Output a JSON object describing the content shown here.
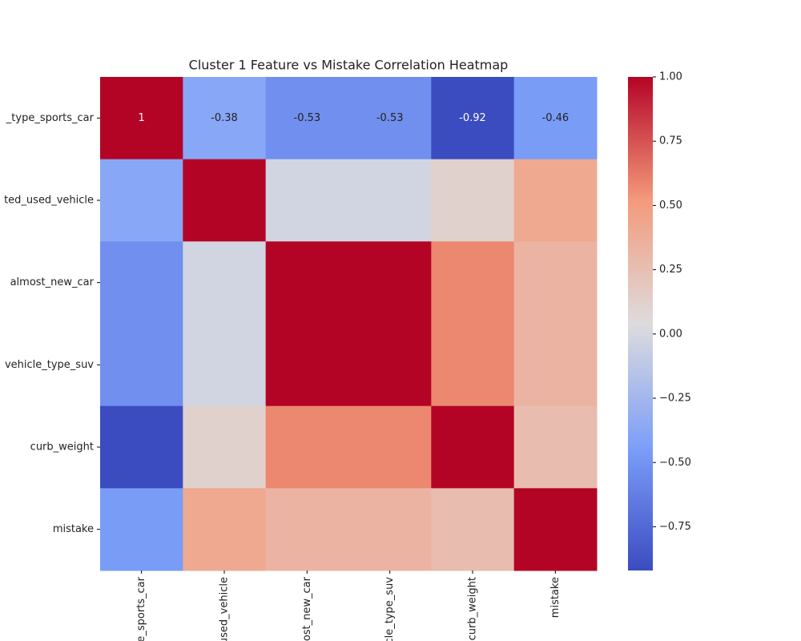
{
  "chart_data": {
    "type": "heatmap",
    "title": "Cluster 1 Feature vs Mistake Correlation Heatmap",
    "colormap": "coolwarm",
    "categories": [
      "_type_sports_car",
      "ted_used_vehicle",
      "almost_new_car",
      "vehicle_type_suv",
      "curb_weight",
      "mistake"
    ],
    "values": [
      [
        1,
        -0.38,
        -0.53,
        -0.53,
        -0.92,
        -0.46
      ],
      [
        -0.38,
        1,
        -0.02,
        -0.02,
        0.12,
        0.41
      ],
      [
        -0.53,
        -0.02,
        1,
        1,
        0.58,
        0.33
      ],
      [
        -0.53,
        -0.02,
        1,
        1,
        0.58,
        0.33
      ],
      [
        -0.92,
        0.12,
        0.58,
        0.58,
        1,
        0.27
      ],
      [
        -0.46,
        0.41,
        0.33,
        0.33,
        0.27,
        1
      ]
    ],
    "value_labels": [
      [
        "1",
        "-0.38",
        "-0.53",
        "-0.53",
        "-0.92",
        "-0.46"
      ],
      null,
      null,
      null,
      null,
      null
    ],
    "clim": [
      -0.92,
      1
    ],
    "cticks": [
      {
        "value": 1,
        "label": "1.00"
      },
      {
        "value": 0.75,
        "label": "0.75"
      },
      {
        "value": 0.5,
        "label": "0.50"
      },
      {
        "value": 0.25,
        "label": "0.25"
      },
      {
        "value": 0,
        "label": "0.00"
      },
      {
        "value": -0.25,
        "label": "−0.25"
      },
      {
        "value": -0.5,
        "label": "−0.50"
      },
      {
        "value": -0.75,
        "label": "−0.75"
      }
    ]
  }
}
